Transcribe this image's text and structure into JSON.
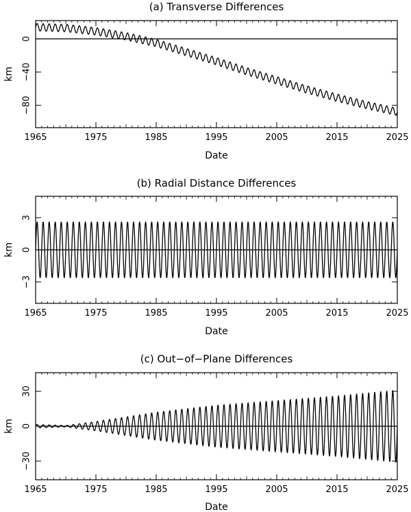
{
  "chart_data": [
    {
      "type": "line",
      "title": "(a) Transverse Differences",
      "xlabel": "Date",
      "ylabel": "km",
      "xlim": [
        1965,
        2025
      ],
      "ylim": [
        -107,
        22
      ],
      "xticks": [
        1965,
        1975,
        1985,
        1995,
        2005,
        2015,
        2025
      ],
      "xtick_labels": [
        "1965",
        "1975",
        "1985",
        "1995",
        "2005",
        "2015",
        "2025"
      ],
      "yticks": [
        -80,
        -40,
        0
      ],
      "ytick_labels": [
        "−80",
        "−40",
        "0"
      ],
      "zero_line": true,
      "series": [
        {
          "kind": "trend-plus-oscillation",
          "period_years": 1.0,
          "oscillation_amplitude": 4.5,
          "trend": {
            "x": [
              1965,
              1970,
              1975,
              1980,
              1985,
              1990,
              1995,
              2000,
              2005,
              2010,
              2015,
              2020,
              2025
            ],
            "y": [
              14,
              13,
              9,
              3,
              -5,
              -16,
              -27,
              -39,
              -50,
              -61,
              -71,
              -80,
              -88
            ]
          }
        }
      ]
    },
    {
      "type": "line",
      "title": "(b) Radial Distance Differences",
      "xlabel": "Date",
      "ylabel": "km",
      "xlim": [
        1965,
        2025
      ],
      "ylim": [
        -5,
        5
      ],
      "xticks": [
        1965,
        1975,
        1985,
        1995,
        2005,
        2015,
        2025
      ],
      "xtick_labels": [
        "1965",
        "1975",
        "1985",
        "1995",
        "2005",
        "2015",
        "2025"
      ],
      "yticks": [
        -3,
        0,
        3
      ],
      "ytick_labels": [
        "−3",
        "0",
        "3"
      ],
      "zero_line": true,
      "series": [
        {
          "kind": "trend-plus-oscillation",
          "period_years": 1.0,
          "oscillation_amplitude": 2.6,
          "trend": {
            "x": [
              1965,
              2025
            ],
            "y": [
              0,
              0
            ]
          }
        }
      ]
    },
    {
      "type": "line",
      "title": "(c) Out−of−Plane Differences",
      "xlabel": "Date",
      "ylabel": "km",
      "xlim": [
        1965,
        2025
      ],
      "ylim": [
        -46,
        46
      ],
      "xticks": [
        1965,
        1975,
        1985,
        1995,
        2005,
        2015,
        2025
      ],
      "xtick_labels": [
        "1965",
        "1975",
        "1985",
        "1995",
        "2005",
        "2015",
        "2025"
      ],
      "yticks": [
        -30,
        0,
        30
      ],
      "ytick_labels": [
        "−30",
        "0",
        "30"
      ],
      "zero_line": true,
      "series": [
        {
          "kind": "growing-oscillation",
          "period_years": 1.0,
          "amplitude": {
            "x": [
              1965,
              1970,
              1975,
              1985,
              1995,
              2005,
              2015,
              2025
            ],
            "y": [
              1.5,
              0.6,
              4,
              12,
              18,
              22,
              26,
              31
            ]
          }
        }
      ]
    }
  ]
}
